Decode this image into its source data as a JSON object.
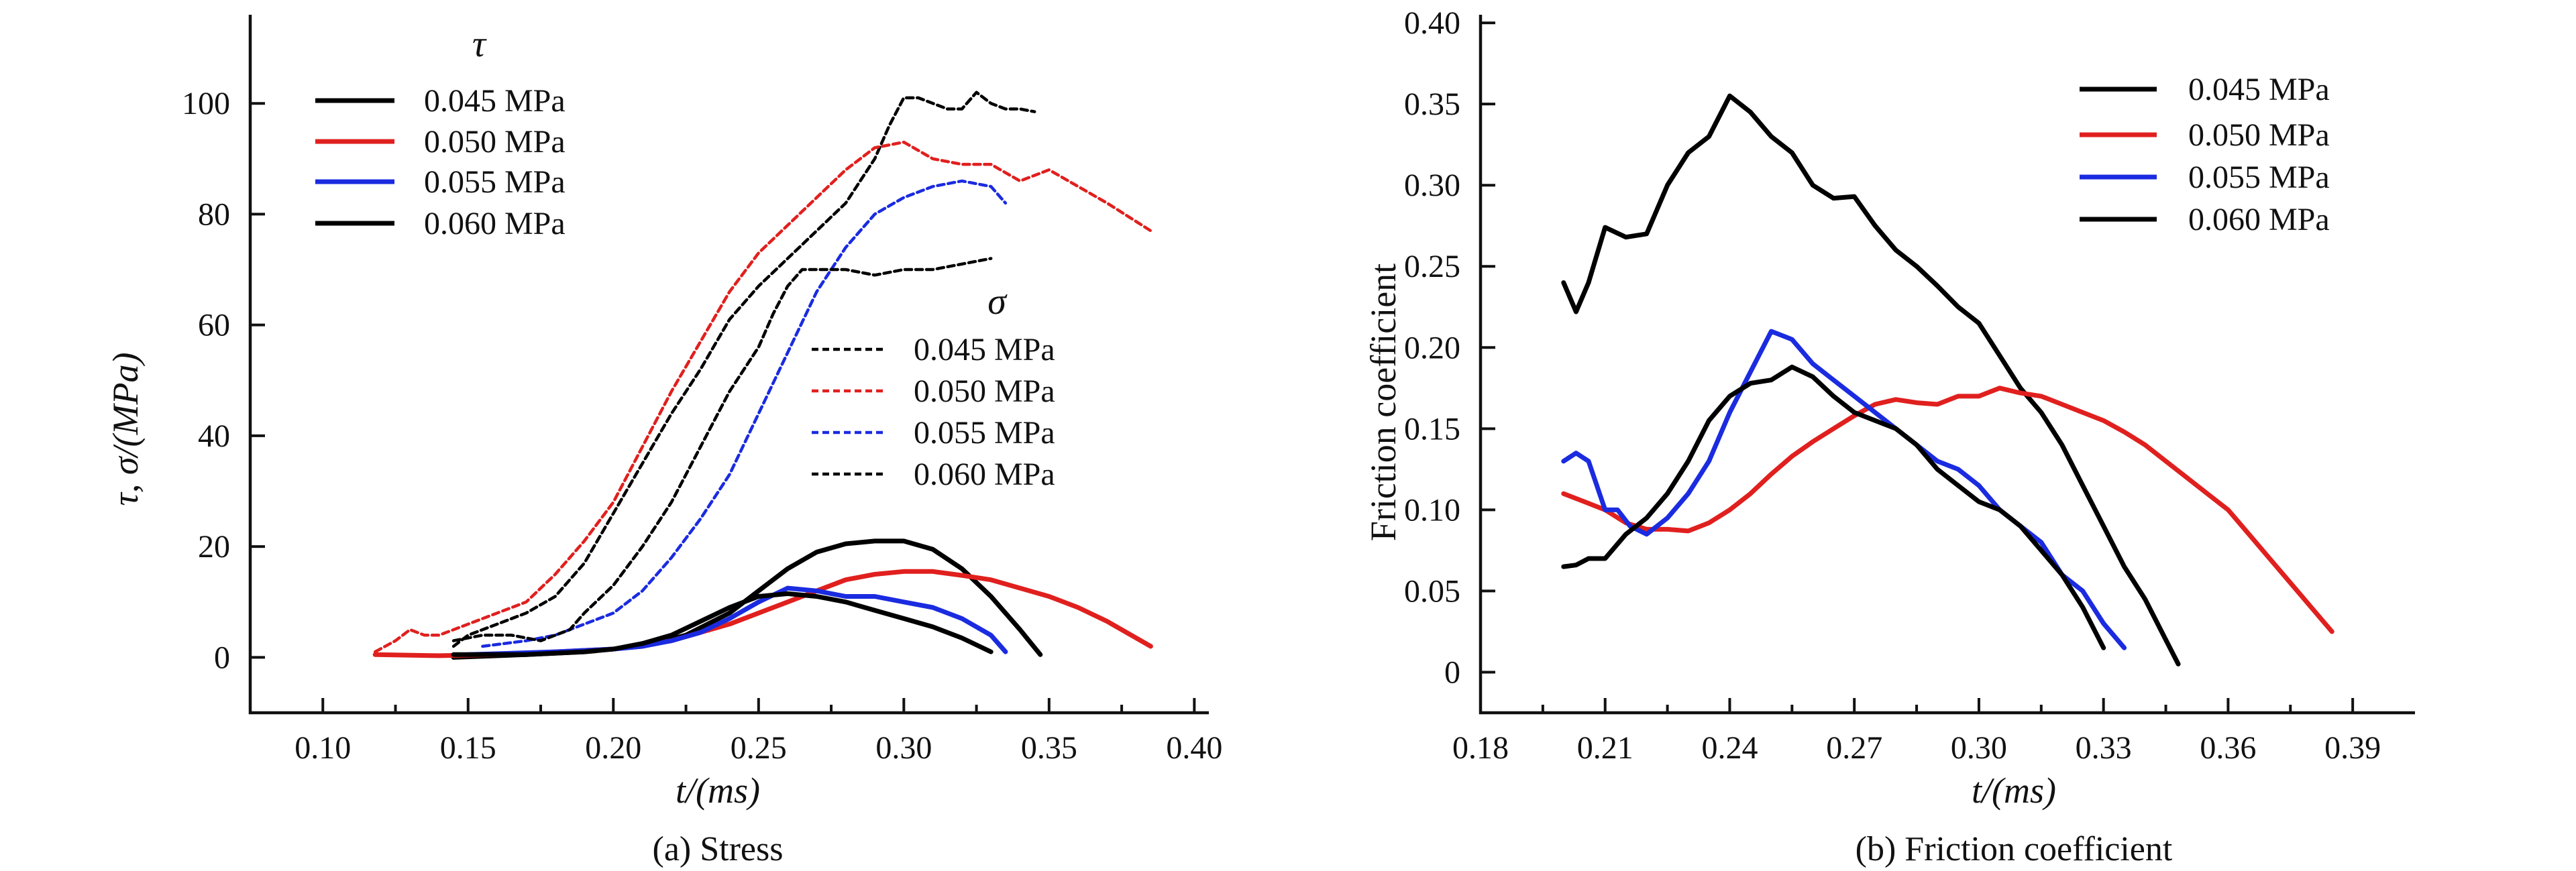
{
  "chart_data": [
    {
      "type": "line",
      "caption": "(a) Stress",
      "xlabel": "t/(ms)",
      "ylabel": "τ, σ/(MPa)",
      "xlim": [
        0.075,
        0.405
      ],
      "ylim": [
        -10,
        116
      ],
      "xticks": [
        "0.10",
        "0.15",
        "0.20",
        "0.25",
        "0.30",
        "0.35",
        "0.40"
      ],
      "yticks": [
        "0",
        "20",
        "40",
        "60",
        "80",
        "100"
      ],
      "legend_tau": {
        "title": "τ",
        "entries": [
          {
            "label": "0.045 MPa",
            "color": "#000000",
            "style": "solid"
          },
          {
            "label": "0.050 MPa",
            "color": "#e0201e",
            "style": "solid"
          },
          {
            "label": "0.055 MPa",
            "color": "#1a2be0",
            "style": "solid"
          },
          {
            "label": "0.060 MPa",
            "color": "#000000",
            "style": "solid"
          }
        ]
      },
      "legend_sigma": {
        "title": "σ",
        "entries": [
          {
            "label": "0.045 MPa",
            "color": "#000000",
            "style": "dashed"
          },
          {
            "label": "0.050 MPa",
            "color": "#e0201e",
            "style": "dashed"
          },
          {
            "label": "0.055 MPa",
            "color": "#1a2be0",
            "style": "dashed"
          },
          {
            "label": "0.060 MPa",
            "color": "#000000",
            "style": "dashed"
          }
        ]
      },
      "series": [
        {
          "name": "τ 0.045 MPa",
          "color": "#000000",
          "dashed": false,
          "x": [
            0.145,
            0.17,
            0.19,
            0.21,
            0.225,
            0.24,
            0.25,
            0.26,
            0.27,
            0.28,
            0.29,
            0.3,
            0.31,
            0.32,
            0.33,
            0.34,
            0.347
          ],
          "y": [
            0,
            0.5,
            1,
            2,
            4,
            8,
            12,
            16,
            19,
            20.5,
            21,
            21,
            19.5,
            16,
            11,
            5,
            0.5
          ]
        },
        {
          "name": "τ 0.050 MPa",
          "color": "#e0201e",
          "dashed": false,
          "x": [
            0.118,
            0.14,
            0.16,
            0.18,
            0.2,
            0.22,
            0.24,
            0.25,
            0.26,
            0.27,
            0.28,
            0.29,
            0.3,
            0.31,
            0.32,
            0.33,
            0.34,
            0.35,
            0.36,
            0.37,
            0.385
          ],
          "y": [
            0.5,
            0.3,
            0.5,
            1,
            1.5,
            3,
            6,
            8,
            10,
            12,
            14,
            15,
            15.5,
            15.5,
            14.8,
            14,
            12.5,
            11,
            9,
            6.5,
            2
          ]
        },
        {
          "name": "τ 0.055 MPa",
          "color": "#1a2be0",
          "dashed": false,
          "x": [
            0.15,
            0.18,
            0.2,
            0.21,
            0.22,
            0.23,
            0.24,
            0.25,
            0.26,
            0.27,
            0.28,
            0.29,
            0.3,
            0.31,
            0.32,
            0.33,
            0.335
          ],
          "y": [
            0.5,
            1,
            1.5,
            2,
            3,
            4.5,
            7,
            10,
            12.5,
            12,
            11,
            11,
            10,
            9,
            7,
            4,
            1
          ]
        },
        {
          "name": "τ 0.060 MPa",
          "color": "#000000",
          "dashed": false,
          "x": [
            0.145,
            0.17,
            0.19,
            0.2,
            0.21,
            0.22,
            0.23,
            0.24,
            0.25,
            0.26,
            0.27,
            0.28,
            0.29,
            0.3,
            0.31,
            0.32,
            0.33
          ],
          "y": [
            0.5,
            0.5,
            1,
            1.5,
            2.5,
            4,
            6.5,
            9,
            11,
            11.5,
            11,
            10,
            8.5,
            7,
            5.5,
            3.5,
            1
          ]
        },
        {
          "name": "σ 0.045 MPa",
          "color": "#000000",
          "dashed": true,
          "x": [
            0.145,
            0.15,
            0.16,
            0.17,
            0.18,
            0.19,
            0.2,
            0.21,
            0.22,
            0.23,
            0.24,
            0.25,
            0.26,
            0.27,
            0.28,
            0.29,
            0.295,
            0.3,
            0.305,
            0.31,
            0.315,
            0.32,
            0.325,
            0.33,
            0.335,
            0.34,
            0.345
          ],
          "y": [
            2,
            4,
            6,
            8,
            11,
            17,
            26,
            35,
            44,
            52,
            61,
            67,
            72,
            77,
            82,
            90,
            96,
            101,
            101,
            100,
            99,
            99,
            102,
            100,
            99,
            99,
            98.5
          ]
        },
        {
          "name": "σ 0.050 MPa",
          "color": "#e0201e",
          "dashed": true,
          "x": [
            0.118,
            0.125,
            0.13,
            0.135,
            0.14,
            0.15,
            0.16,
            0.17,
            0.18,
            0.19,
            0.2,
            0.21,
            0.22,
            0.23,
            0.24,
            0.25,
            0.26,
            0.27,
            0.28,
            0.29,
            0.3,
            0.31,
            0.32,
            0.33,
            0.34,
            0.35,
            0.36,
            0.37,
            0.385
          ],
          "y": [
            1,
            3,
            5,
            4,
            4,
            6,
            8,
            10,
            15,
            21,
            28,
            38,
            48,
            57,
            66,
            73,
            78,
            83,
            88,
            92,
            93,
            90,
            89,
            89,
            86,
            88,
            85,
            82,
            77
          ]
        },
        {
          "name": "σ 0.055 MPa",
          "color": "#1a2be0",
          "dashed": true,
          "x": [
            0.155,
            0.17,
            0.18,
            0.19,
            0.2,
            0.21,
            0.22,
            0.23,
            0.24,
            0.25,
            0.26,
            0.27,
            0.28,
            0.29,
            0.3,
            0.31,
            0.32,
            0.33,
            0.335
          ],
          "y": [
            2,
            3,
            4,
            6,
            8,
            12,
            18,
            25,
            33,
            44,
            55,
            66,
            74,
            80,
            83,
            85,
            86,
            85,
            82
          ]
        },
        {
          "name": "σ 0.060 MPa",
          "color": "#000000",
          "dashed": true,
          "x": [
            0.145,
            0.155,
            0.165,
            0.175,
            0.18,
            0.185,
            0.19,
            0.2,
            0.21,
            0.22,
            0.23,
            0.24,
            0.25,
            0.255,
            0.26,
            0.265,
            0.27,
            0.28,
            0.29,
            0.3,
            0.31,
            0.32,
            0.33
          ],
          "y": [
            3,
            4,
            4,
            3,
            4,
            5,
            8,
            13,
            20,
            28,
            38,
            48,
            56,
            62,
            67,
            70,
            70,
            70,
            69,
            70,
            70,
            71,
            72
          ]
        }
      ]
    },
    {
      "type": "line",
      "caption": "(b) Friction coefficient",
      "xlabel": "t/(ms)",
      "ylabel": "Friction coefficient",
      "xlim": [
        0.18,
        0.405
      ],
      "ylim": [
        -0.025,
        0.405
      ],
      "xticks": [
        "0.18",
        "0.21",
        "0.24",
        "0.27",
        "0.30",
        "0.33",
        "0.36",
        "0.39"
      ],
      "yticks": [
        "0",
        "0.05",
        "0.10",
        "0.15",
        "0.20",
        "0.25",
        "0.30",
        "0.35",
        "0.40"
      ],
      "legend": {
        "entries": [
          {
            "label": "0.045 MPa",
            "color": "#000000"
          },
          {
            "label": "0.050 MPa",
            "color": "#e0201e"
          },
          {
            "label": "0.055 MPa",
            "color": "#1a2be0"
          },
          {
            "label": "0.060 MPa",
            "color": "#000000"
          }
        ]
      },
      "series": [
        {
          "name": "0.045 MPa",
          "color": "#000000",
          "x": [
            0.2,
            0.203,
            0.206,
            0.21,
            0.215,
            0.22,
            0.225,
            0.23,
            0.235,
            0.24,
            0.245,
            0.25,
            0.255,
            0.26,
            0.265,
            0.27,
            0.275,
            0.28,
            0.285,
            0.29,
            0.295,
            0.3,
            0.305,
            0.31,
            0.315,
            0.32,
            0.325,
            0.33,
            0.335,
            0.34,
            0.345,
            0.348
          ],
          "y": [
            0.24,
            0.222,
            0.24,
            0.274,
            0.268,
            0.27,
            0.3,
            0.32,
            0.33,
            0.355,
            0.345,
            0.33,
            0.32,
            0.3,
            0.292,
            0.293,
            0.275,
            0.26,
            0.25,
            0.238,
            0.225,
            0.215,
            0.195,
            0.175,
            0.16,
            0.14,
            0.115,
            0.09,
            0.065,
            0.045,
            0.02,
            0.005
          ]
        },
        {
          "name": "0.050 MPa",
          "color": "#e0201e",
          "x": [
            0.2,
            0.205,
            0.21,
            0.215,
            0.22,
            0.225,
            0.23,
            0.235,
            0.24,
            0.245,
            0.25,
            0.255,
            0.26,
            0.265,
            0.27,
            0.275,
            0.28,
            0.285,
            0.29,
            0.295,
            0.3,
            0.305,
            0.31,
            0.315,
            0.32,
            0.325,
            0.33,
            0.335,
            0.34,
            0.345,
            0.35,
            0.355,
            0.36,
            0.365,
            0.37,
            0.375,
            0.38,
            0.385
          ],
          "y": [
            0.11,
            0.105,
            0.1,
            0.092,
            0.088,
            0.088,
            0.087,
            0.092,
            0.1,
            0.11,
            0.122,
            0.133,
            0.142,
            0.15,
            0.158,
            0.165,
            0.168,
            0.166,
            0.165,
            0.17,
            0.17,
            0.175,
            0.172,
            0.17,
            0.165,
            0.16,
            0.155,
            0.148,
            0.14,
            0.13,
            0.12,
            0.11,
            0.1,
            0.085,
            0.07,
            0.055,
            0.04,
            0.025
          ]
        },
        {
          "name": "0.055 MPa",
          "color": "#1a2be0",
          "x": [
            0.2,
            0.203,
            0.206,
            0.21,
            0.213,
            0.216,
            0.22,
            0.225,
            0.23,
            0.235,
            0.24,
            0.245,
            0.25,
            0.255,
            0.26,
            0.265,
            0.27,
            0.275,
            0.28,
            0.285,
            0.29,
            0.295,
            0.3,
            0.305,
            0.31,
            0.315,
            0.32,
            0.325,
            0.33,
            0.335
          ],
          "y": [
            0.13,
            0.135,
            0.13,
            0.1,
            0.1,
            0.09,
            0.085,
            0.095,
            0.11,
            0.13,
            0.16,
            0.185,
            0.21,
            0.205,
            0.19,
            0.18,
            0.17,
            0.16,
            0.15,
            0.14,
            0.13,
            0.125,
            0.115,
            0.1,
            0.09,
            0.08,
            0.06,
            0.05,
            0.03,
            0.015
          ]
        },
        {
          "name": "0.060 MPa",
          "color": "#000000",
          "x": [
            0.2,
            0.203,
            0.206,
            0.21,
            0.215,
            0.22,
            0.225,
            0.23,
            0.235,
            0.24,
            0.245,
            0.25,
            0.255,
            0.26,
            0.265,
            0.27,
            0.275,
            0.28,
            0.285,
            0.29,
            0.295,
            0.3,
            0.305,
            0.31,
            0.315,
            0.32,
            0.325,
            0.33
          ],
          "y": [
            0.065,
            0.066,
            0.07,
            0.07,
            0.085,
            0.095,
            0.11,
            0.13,
            0.155,
            0.17,
            0.178,
            0.18,
            0.188,
            0.182,
            0.17,
            0.16,
            0.155,
            0.15,
            0.14,
            0.125,
            0.115,
            0.105,
            0.1,
            0.09,
            0.075,
            0.06,
            0.04,
            0.015
          ]
        }
      ]
    }
  ]
}
